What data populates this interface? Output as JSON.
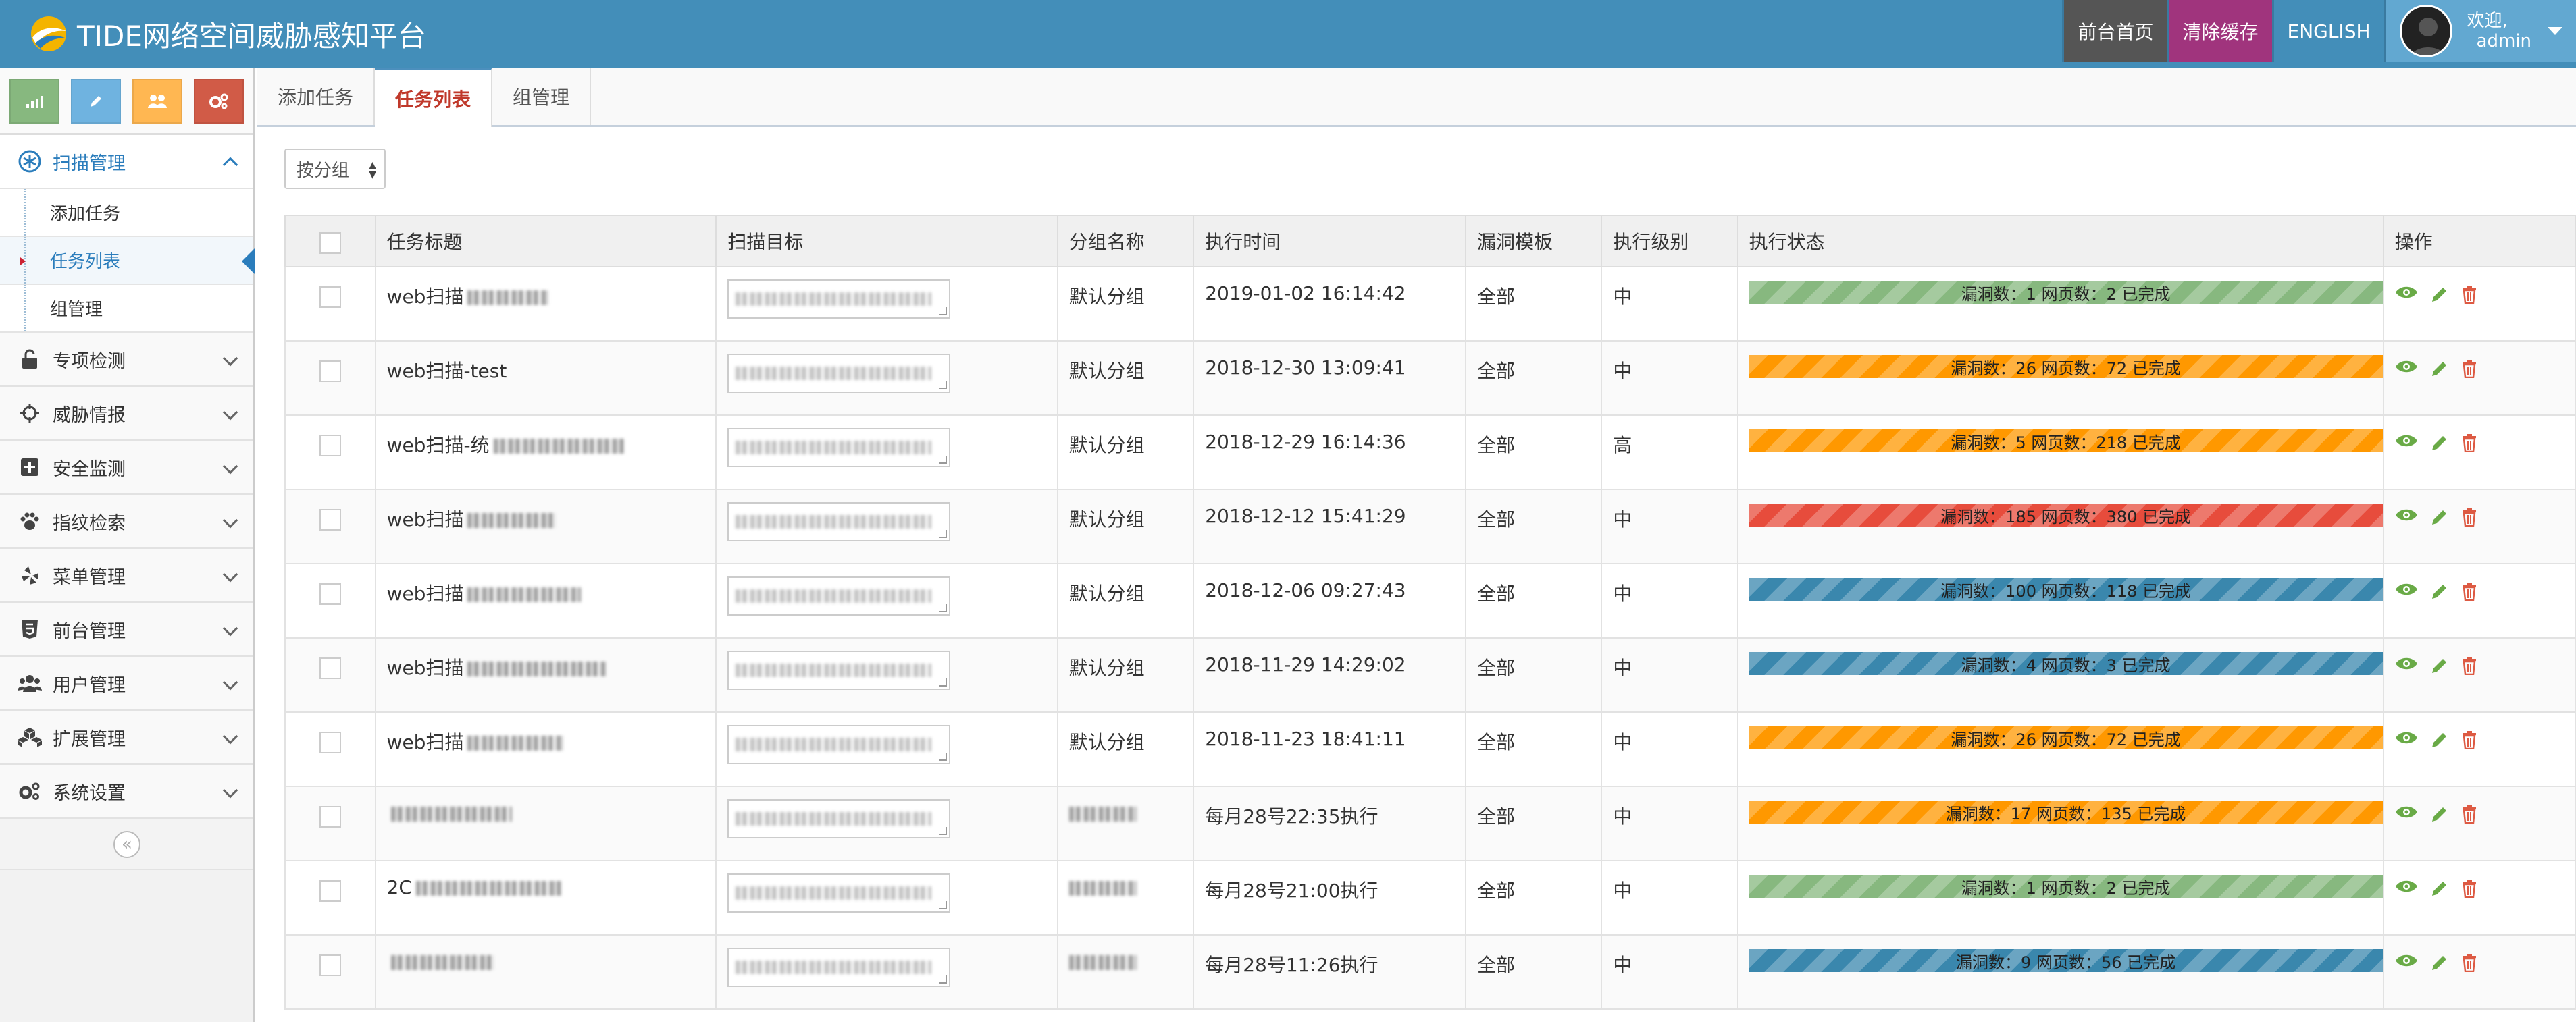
{
  "app": {
    "title": "TIDE网络空间威胁感知平台"
  },
  "topnav": {
    "home": "前台首页",
    "clear_cache": "清除缓存",
    "english": "ENGLISH",
    "welcome": "欢迎,",
    "user": "admin"
  },
  "sidebar": {
    "shortcuts": [
      {
        "icon": "signal-icon",
        "color": "#87b87f"
      },
      {
        "icon": "pencil-icon",
        "color": "#6fb3e0"
      },
      {
        "icon": "users-icon",
        "color": "#ffb752"
      },
      {
        "icon": "cogs-icon",
        "color": "#d15b47"
      }
    ],
    "active_menu": "扫描管理",
    "sub_items": [
      "添加任务",
      "任务列表",
      "组管理"
    ],
    "menu": [
      "专项检测",
      "威胁情报",
      "安全监测",
      "指纹检索",
      "菜单管理",
      "前台管理",
      "用户管理",
      "扩展管理",
      "系统设置"
    ]
  },
  "tabs": [
    "添加任务",
    "任务列表",
    "组管理"
  ],
  "filter": {
    "group_select": "按分组"
  },
  "table": {
    "headers": [
      "任务标题",
      "扫描目标",
      "分组名称",
      "执行时间",
      "漏洞模板",
      "执行级别",
      "执行状态",
      "操作"
    ],
    "rows": [
      {
        "title": "web扫描",
        "group": "默认分组",
        "time": "2019-01-02 16:14:42",
        "template": "全部",
        "level": "中",
        "status": "漏洞数：1 网页数：2  已完成",
        "color": "green"
      },
      {
        "title": "web扫描-test",
        "group": "默认分组",
        "time": "2018-12-30 13:09:41",
        "template": "全部",
        "level": "中",
        "status": "漏洞数：26 网页数：72  已完成",
        "color": "orange"
      },
      {
        "title": "web扫描-统",
        "group": "默认分组",
        "time": "2018-12-29 16:14:36",
        "template": "全部",
        "level": "高",
        "status": "漏洞数：5 网页数：218  已完成",
        "color": "orange"
      },
      {
        "title": "web扫描",
        "group": "默认分组",
        "time": "2018-12-12 15:41:29",
        "template": "全部",
        "level": "中",
        "status": "漏洞数：185 网页数：380  已完成",
        "color": "red"
      },
      {
        "title": "web扫描",
        "group": "默认分组",
        "time": "2018-12-06 09:27:43",
        "template": "全部",
        "level": "中",
        "status": "漏洞数：100 网页数：118  已完成",
        "color": "blue"
      },
      {
        "title": "web扫描",
        "group": "默认分组",
        "time": "2018-11-29 14:29:02",
        "template": "全部",
        "level": "中",
        "status": "漏洞数：4 网页数：3  已完成",
        "color": "blue"
      },
      {
        "title": "web扫描",
        "group": "默认分组",
        "time": "2018-11-23 18:41:11",
        "template": "全部",
        "level": "中",
        "status": "漏洞数：26 网页数：72  已完成",
        "color": "orange"
      },
      {
        "title": "",
        "group": "",
        "time": "每月28号22:35执行",
        "template": "全部",
        "level": "中",
        "status": "漏洞数：17 网页数：135  已完成",
        "color": "orange"
      },
      {
        "title": "2C",
        "group": "",
        "time": "每月28号21:00执行",
        "template": "全部",
        "level": "中",
        "status": "漏洞数：1 网页数：2  已完成",
        "color": "green"
      },
      {
        "title": "",
        "group": "",
        "time": "每月28号11:26执行",
        "template": "全部",
        "level": "中",
        "status": "漏洞数：9 网页数：56  已完成",
        "color": "blue"
      }
    ]
  }
}
